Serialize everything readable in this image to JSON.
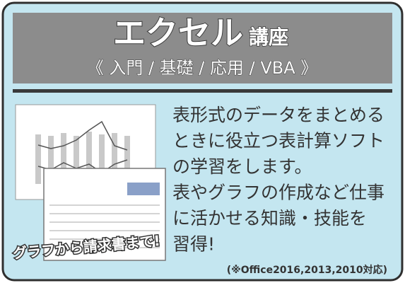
{
  "header": {
    "title": "エクセル",
    "title_suffix": "講座",
    "subtitle": "《 入門 / 基礎 / 応用 / VBA 》"
  },
  "body": {
    "lines": [
      "表形式のデータをまとめる",
      "ときに役立つ表計算ソフト",
      "の学習をします。",
      "表やグラフの作成など仕事",
      "に活かせる知識・技能を",
      "習得!"
    ]
  },
  "image_caption": "グラフから請求書まで!",
  "note": "(※Office2016,2013,2010対応)"
}
